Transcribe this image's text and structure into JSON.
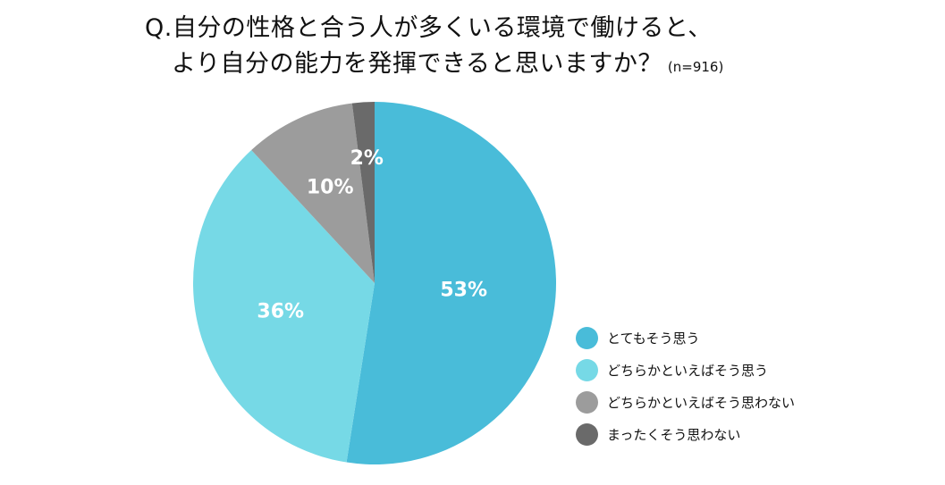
{
  "title": {
    "line1": "Q.自分の性格と合う人が多くいる環境で働けると、",
    "line2": "より自分の能力を発揮できると思いますか？",
    "n_note": "(n=916)"
  },
  "chart_data": {
    "type": "pie",
    "categories": [
      "とてもそう思う",
      "どちらかといえばそう思う",
      "どちらかといえばそう思わない",
      "まったくそう思わない"
    ],
    "values": [
      53,
      36,
      10,
      2
    ],
    "value_labels": [
      "53%",
      "36%",
      "10%",
      "2%"
    ],
    "colors": [
      "#49bcd9",
      "#76d9e6",
      "#9c9c9c",
      "#6a6a6a"
    ],
    "start_angle": "12 o'clock",
    "direction": "clockwise",
    "legend_position": "right-bottom",
    "label_color": "#ffffff"
  }
}
